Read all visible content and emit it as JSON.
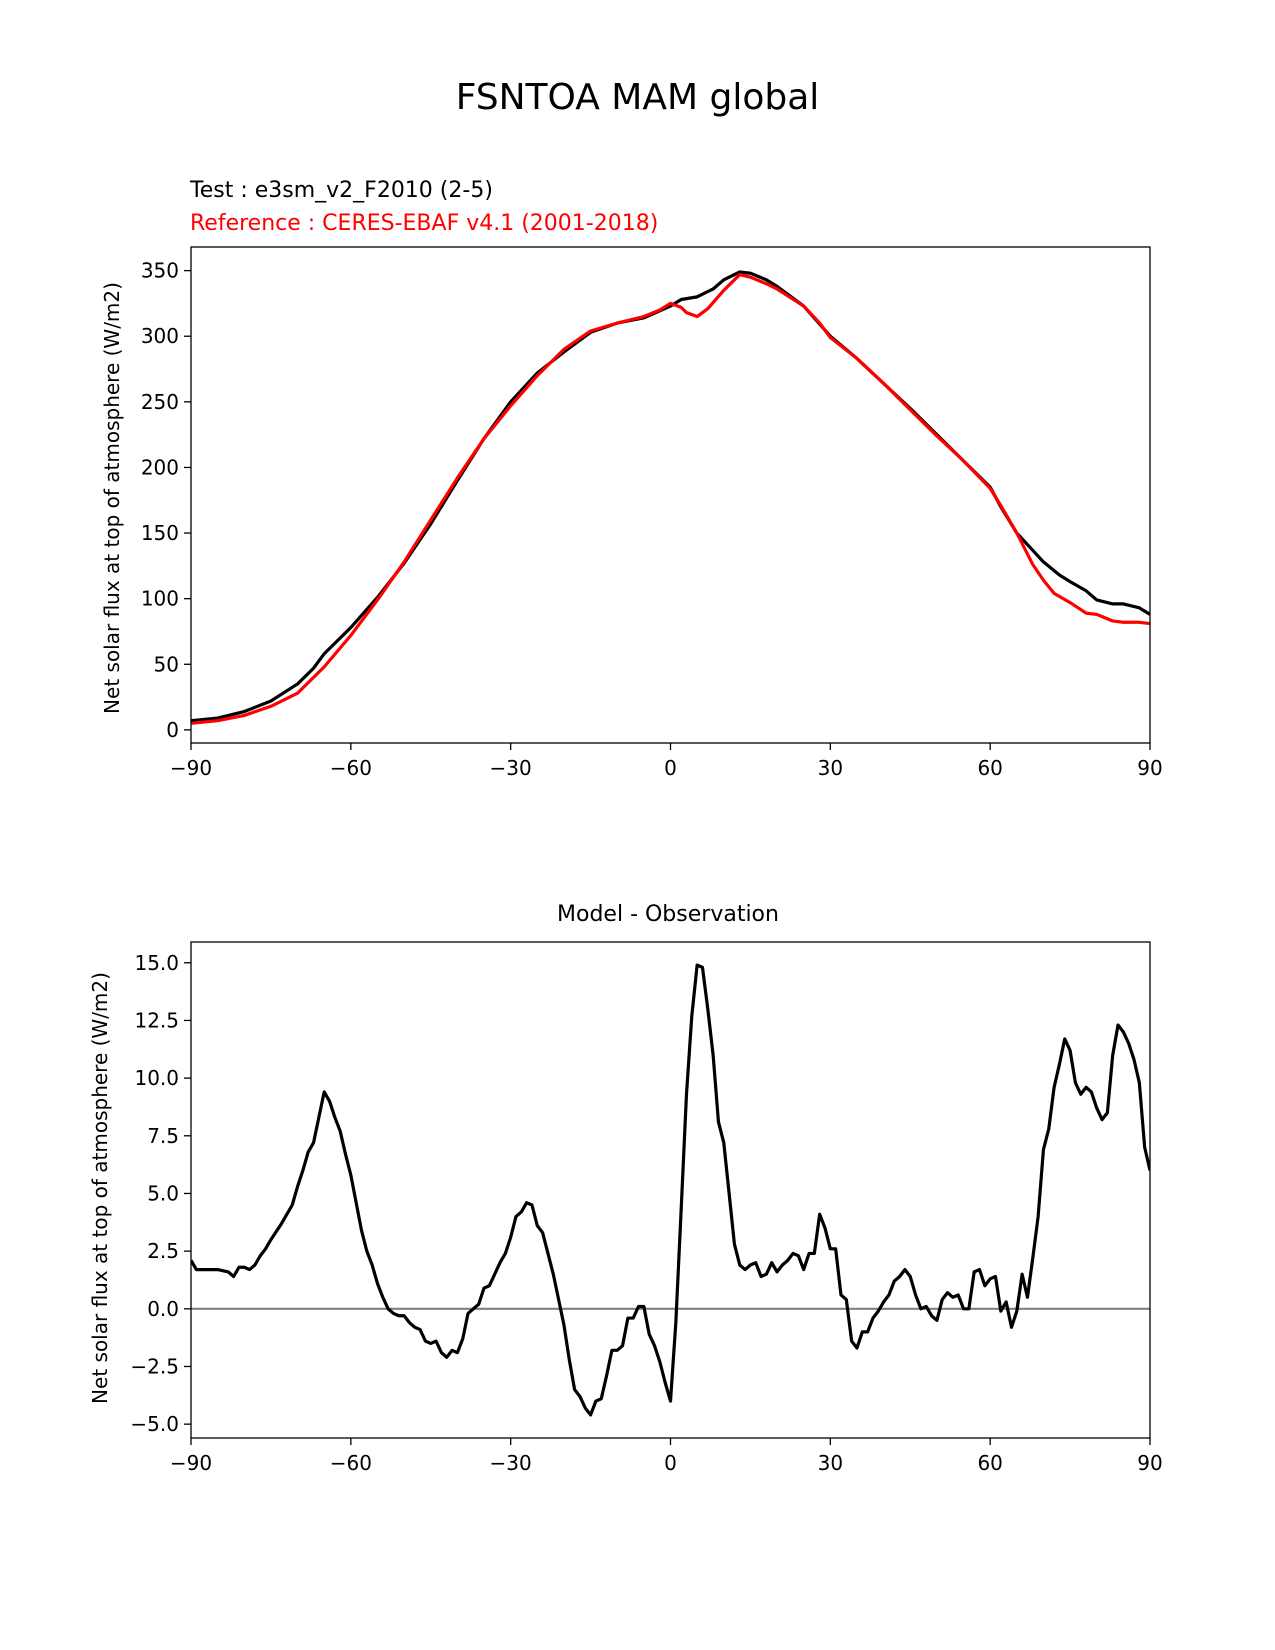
{
  "figure_title": "FSNTOA MAM global",
  "chart_data": [
    {
      "type": "line",
      "test_label": "Test : e3sm_v2_F2010 (2-5)",
      "reference_label": "Reference : CERES-EBAF v4.1 (2001-2018)",
      "ylabel": "Net solar flux at top of atmosphere (W/m2)",
      "xlabel": "",
      "xlim": [
        -90,
        90
      ],
      "ylim": [
        -10,
        368
      ],
      "xticks": [
        -90,
        -60,
        -30,
        0,
        30,
        60,
        90
      ],
      "xtick_labels": [
        "−90",
        "−60",
        "−30",
        "0",
        "30",
        "60",
        "90"
      ],
      "yticks": [
        0,
        50,
        100,
        150,
        200,
        250,
        300,
        350
      ],
      "ytick_labels": [
        "0",
        "50",
        "100",
        "150",
        "200",
        "250",
        "300",
        "350"
      ],
      "grid": false,
      "series": [
        {
          "color": "#000000",
          "x": [
            -90,
            -85,
            -80,
            -75,
            -70,
            -67,
            -65,
            -60,
            -55,
            -50,
            -45,
            -40,
            -35,
            -30,
            -25,
            -20,
            -15,
            -10,
            -5,
            0,
            2,
            5,
            8,
            10,
            13,
            15,
            18,
            20,
            25,
            30,
            35,
            40,
            45,
            50,
            55,
            60,
            62,
            65,
            70,
            73,
            75,
            78,
            80,
            83,
            85,
            88,
            90
          ],
          "y": [
            7,
            9,
            14,
            22,
            35,
            47,
            58,
            78,
            101,
            127,
            157,
            190,
            222,
            250,
            272,
            288,
            303,
            310,
            314,
            323,
            328,
            330,
            336,
            343,
            349,
            348,
            343,
            338,
            323,
            300,
            283,
            264,
            245,
            225,
            205,
            185,
            170,
            150,
            128,
            118,
            113,
            106,
            99,
            96,
            96,
            93,
            88
          ]
        },
        {
          "color": "#ff0000",
          "x": [
            -90,
            -85,
            -80,
            -75,
            -70,
            -65,
            -60,
            -55,
            -50,
            -45,
            -40,
            -35,
            -30,
            -25,
            -20,
            -15,
            -10,
            -5,
            -2,
            0,
            2,
            3,
            5,
            7,
            10,
            13,
            15,
            18,
            20,
            25,
            28,
            30,
            35,
            40,
            45,
            50,
            55,
            60,
            62,
            65,
            68,
            70,
            72,
            75,
            78,
            80,
            83,
            85,
            88,
            90
          ],
          "y": [
            5,
            7,
            11,
            18,
            28,
            48,
            72,
            99,
            128,
            160,
            192,
            222,
            247,
            270,
            290,
            304,
            310,
            315,
            320,
            325,
            322,
            318,
            315,
            321,
            335,
            347,
            345,
            340,
            336,
            323,
            310,
            299,
            283,
            264,
            244,
            224,
            205,
            184,
            171,
            150,
            126,
            114,
            104,
            97,
            89,
            88,
            83,
            82,
            82,
            81
          ]
        }
      ]
    },
    {
      "type": "line",
      "title": "Model - Observation",
      "ylabel": "Net solar flux at top of atmosphere (W/m2)",
      "xlabel": "",
      "xlim": [
        -90,
        90
      ],
      "ylim": [
        -5.6,
        15.9
      ],
      "xticks": [
        -90,
        -60,
        -30,
        0,
        30,
        60,
        90
      ],
      "xtick_labels": [
        "−90",
        "−60",
        "−30",
        "0",
        "30",
        "60",
        "90"
      ],
      "yticks": [
        -5.0,
        -2.5,
        0.0,
        2.5,
        5.0,
        7.5,
        10.0,
        12.5,
        15.0
      ],
      "ytick_labels": [
        "−5.0",
        "−2.5",
        "0.0",
        "2.5",
        "5.0",
        "7.5",
        "10.0",
        "12.5",
        "15.0"
      ],
      "grid": false,
      "zero_line_color": "#808080",
      "series": [
        {
          "color": "#000000",
          "x": [
            -90,
            -89,
            -87,
            -85,
            -83,
            -82,
            -81,
            -80,
            -79,
            -78,
            -77,
            -76,
            -75,
            -73,
            -72,
            -71,
            -70,
            -69,
            -68,
            -67,
            -66,
            -65,
            -64,
            -63,
            -62,
            -61,
            -60,
            -59,
            -58,
            -57,
            -56,
            -55,
            -54,
            -53,
            -52,
            -51,
            -50,
            -49,
            -48,
            -47,
            -46,
            -45,
            -44,
            -43,
            -42,
            -41,
            -40,
            -39,
            -38,
            -37,
            -36,
            -35,
            -34,
            -33,
            -32,
            -31,
            -30,
            -29,
            -28,
            -27,
            -26,
            -25,
            -24,
            -23,
            -22,
            -21,
            -20,
            -19,
            -18,
            -17,
            -16,
            -15,
            -14,
            -13,
            -12,
            -11,
            -10,
            -9,
            -8,
            -7,
            -6,
            -5,
            -4,
            -3,
            -2,
            -1,
            0,
            1,
            2,
            3,
            4,
            5,
            6,
            7,
            8,
            9,
            10,
            11,
            12,
            13,
            14,
            15,
            16,
            17,
            18,
            19,
            20,
            21,
            22,
            23,
            24,
            25,
            26,
            27,
            28,
            29,
            30,
            31,
            32,
            33,
            34,
            35,
            36,
            37,
            38,
            39,
            40,
            41,
            42,
            43,
            44,
            45,
            46,
            47,
            48,
            49,
            50,
            51,
            52,
            53,
            54,
            55,
            56,
            57,
            58,
            59,
            60,
            61,
            62,
            63,
            64,
            65,
            66,
            67,
            68,
            69,
            70,
            71,
            72,
            73,
            74,
            75,
            76,
            77,
            78,
            79,
            80,
            81,
            82,
            83,
            84,
            85,
            86,
            87,
            88,
            89,
            90
          ],
          "y": [
            2.1,
            1.7,
            1.7,
            1.7,
            1.6,
            1.4,
            1.8,
            1.8,
            1.7,
            1.9,
            2.3,
            2.6,
            3.0,
            3.7,
            4.1,
            4.5,
            5.3,
            6.0,
            6.8,
            7.2,
            8.3,
            9.4,
            9.0,
            8.3,
            7.7,
            6.7,
            5.8,
            4.6,
            3.4,
            2.5,
            1.9,
            1.1,
            0.5,
            0.0,
            -0.2,
            -0.3,
            -0.3,
            -0.6,
            -0.8,
            -0.9,
            -1.4,
            -1.5,
            -1.4,
            -1.9,
            -2.1,
            -1.8,
            -1.9,
            -1.3,
            -0.2,
            0.0,
            0.2,
            0.9,
            1.0,
            1.5,
            2.0,
            2.4,
            3.1,
            4.0,
            4.2,
            4.6,
            4.5,
            3.6,
            3.3,
            2.4,
            1.5,
            0.4,
            -0.7,
            -2.2,
            -3.5,
            -3.8,
            -4.3,
            -4.6,
            -4.0,
            -3.9,
            -2.9,
            -1.8,
            -1.8,
            -1.6,
            -0.4,
            -0.4,
            0.1,
            0.1,
            -1.1,
            -1.6,
            -2.3,
            -3.2,
            -4.0,
            -0.6,
            4.3,
            9.3,
            12.7,
            14.9,
            14.8,
            13.0,
            11.0,
            8.1,
            7.2,
            5.0,
            2.8,
            1.9,
            1.7,
            1.9,
            2.0,
            1.4,
            1.5,
            2.0,
            1.6,
            1.9,
            2.1,
            2.4,
            2.3,
            1.7,
            2.4,
            2.4,
            4.1,
            3.5,
            2.6,
            2.6,
            0.6,
            0.4,
            -1.4,
            -1.7,
            -1.0,
            -1.0,
            -0.4,
            -0.1,
            0.3,
            0.6,
            1.2,
            1.4,
            1.7,
            1.4,
            0.6,
            0.0,
            0.1,
            -0.3,
            -0.5,
            0.4,
            0.7,
            0.5,
            0.6,
            0.0,
            0.0,
            1.6,
            1.7,
            1.0,
            1.3,
            1.4,
            -0.1,
            0.3,
            -0.8,
            -0.1,
            1.5,
            0.5,
            2.2,
            4.0,
            6.9,
            7.8,
            9.6,
            10.6,
            11.7,
            11.2,
            9.8,
            9.3,
            9.6,
            9.4,
            8.7,
            8.2,
            8.5,
            11.0,
            12.3,
            12.0,
            11.5,
            10.8,
            9.8,
            7.0,
            6.0
          ]
        }
      ]
    }
  ]
}
